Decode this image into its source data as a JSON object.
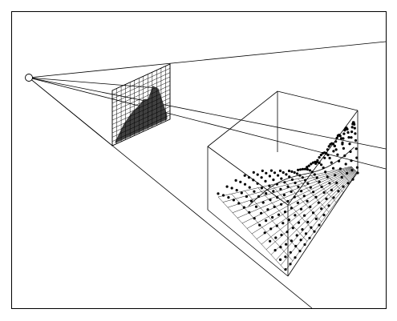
{
  "figure": {
    "kind": "perspective-projection-diagram",
    "colors": {
      "background": "#ffffff",
      "stroke": "#000000",
      "screen_fill": "#404040",
      "point": "#000000"
    },
    "viewpoint": {
      "symbol": "circle-icon"
    },
    "projection_screen": {
      "grid_rows": 13,
      "grid_cols": 13
    },
    "box": {
      "label": ""
    },
    "surface": {
      "grid_rows": 14,
      "grid_cols": 10,
      "point_rows": 16,
      "point_cols": 14
    }
  }
}
